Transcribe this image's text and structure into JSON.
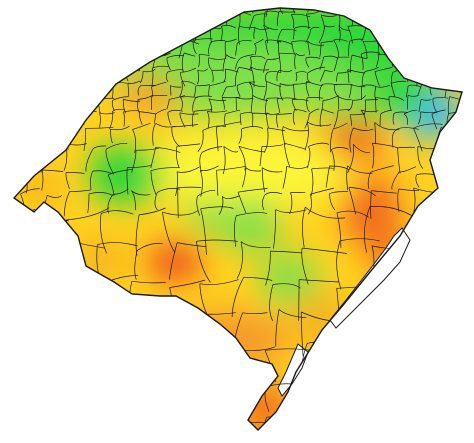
{
  "map": {
    "region": "state-choropleth-heatmap",
    "background_color": "#ffffff",
    "outline_color": "#1a1a1a",
    "color_ramp": [
      "#f26a1b",
      "#ffd21f",
      "#fbf537",
      "#7ee04b",
      "#2ad83a",
      "#36b8ff"
    ],
    "water_color": "#ffffff",
    "labels": []
  }
}
